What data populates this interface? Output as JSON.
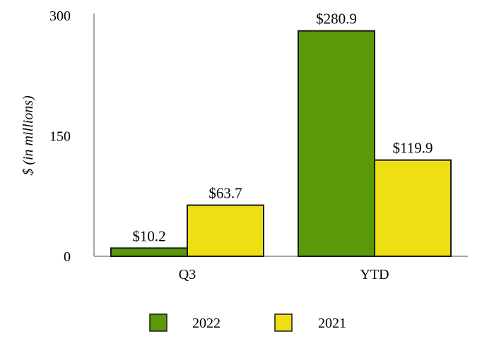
{
  "chart_data": {
    "type": "bar",
    "categories": [
      "Q3",
      "YTD"
    ],
    "series": [
      {
        "name": "2022",
        "values": [
          10.2,
          280.9
        ],
        "labels": [
          "$10.2",
          "$280.9"
        ],
        "color": "#5a9a0a"
      },
      {
        "name": "2021",
        "values": [
          63.7,
          119.9
        ],
        "labels": [
          "$63.7",
          "$119.9"
        ],
        "color": "#eede14"
      }
    ],
    "title": "",
    "xlabel": "",
    "ylabel": "$ (in millions)",
    "ylim": [
      0,
      300
    ],
    "yticks": [
      0,
      150,
      300
    ],
    "ytick_labels": [
      "0",
      "150",
      "300"
    ],
    "grid": false,
    "legend_position": "bottom"
  }
}
